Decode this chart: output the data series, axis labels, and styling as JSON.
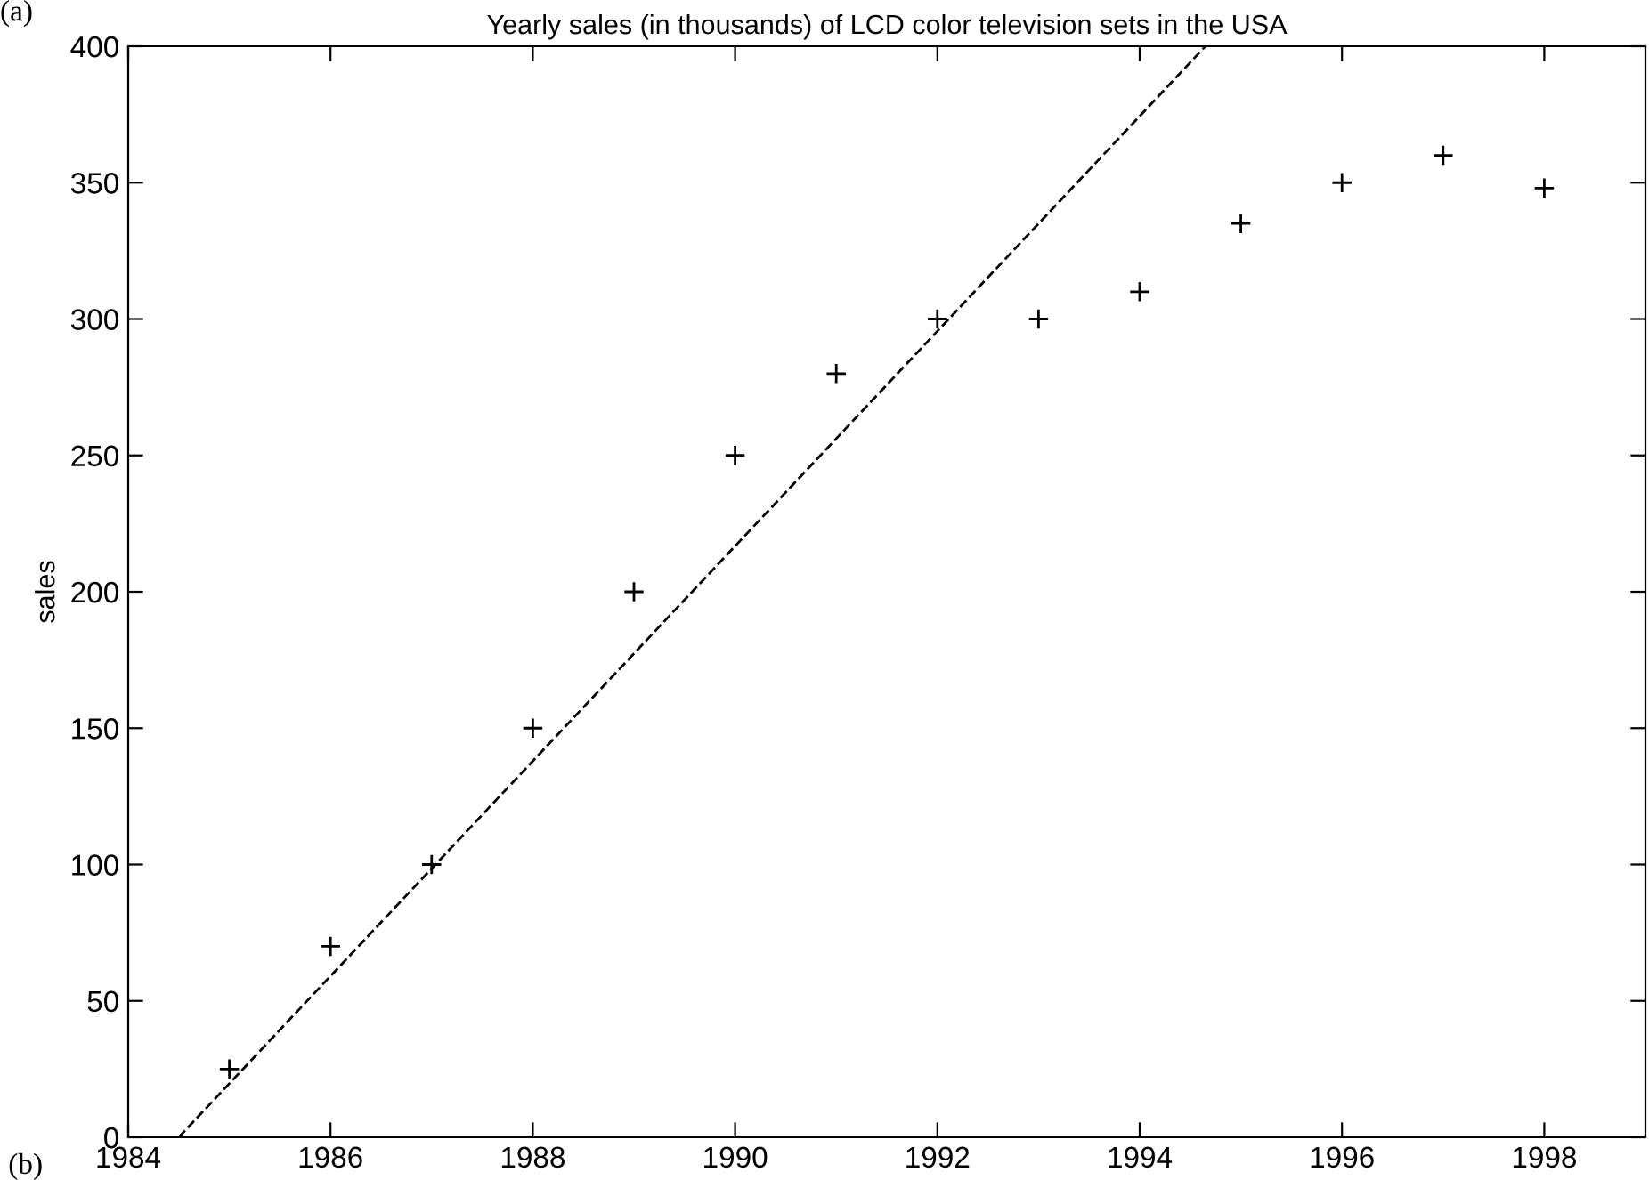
{
  "chart_data": {
    "type": "scatter",
    "title": "Yearly sales (in thousands) of LCD color television sets in the USA",
    "ylabel": "sales",
    "x": [
      1985,
      1986,
      1987,
      1988,
      1989,
      1990,
      1991,
      1992,
      1993,
      1994,
      1995,
      1996,
      1997,
      1998
    ],
    "series": [
      {
        "color": "#000000",
        "marker": "cross",
        "values": [
          25,
          70,
          100,
          150,
          200,
          250,
          280,
          300,
          300,
          310,
          335,
          350,
          360,
          348
        ]
      },
      {
        "type": "line",
        "color": "#000000",
        "line_style": "dashed",
        "marker": "none",
        "x": [
          1984.5,
          1994.65
        ],
        "values": [
          0,
          400
        ]
      }
    ],
    "xlim": [
      1984,
      1999
    ],
    "xticks": [
      1984,
      1986,
      1988,
      1990,
      1992,
      1994,
      1996,
      1998
    ],
    "ylim": [
      0,
      400
    ],
    "yticks": [
      0,
      50,
      100,
      150,
      200,
      250,
      300,
      350,
      400
    ],
    "grid": false,
    "legend": false,
    "annotations": [
      "(a)",
      "(b)"
    ]
  }
}
